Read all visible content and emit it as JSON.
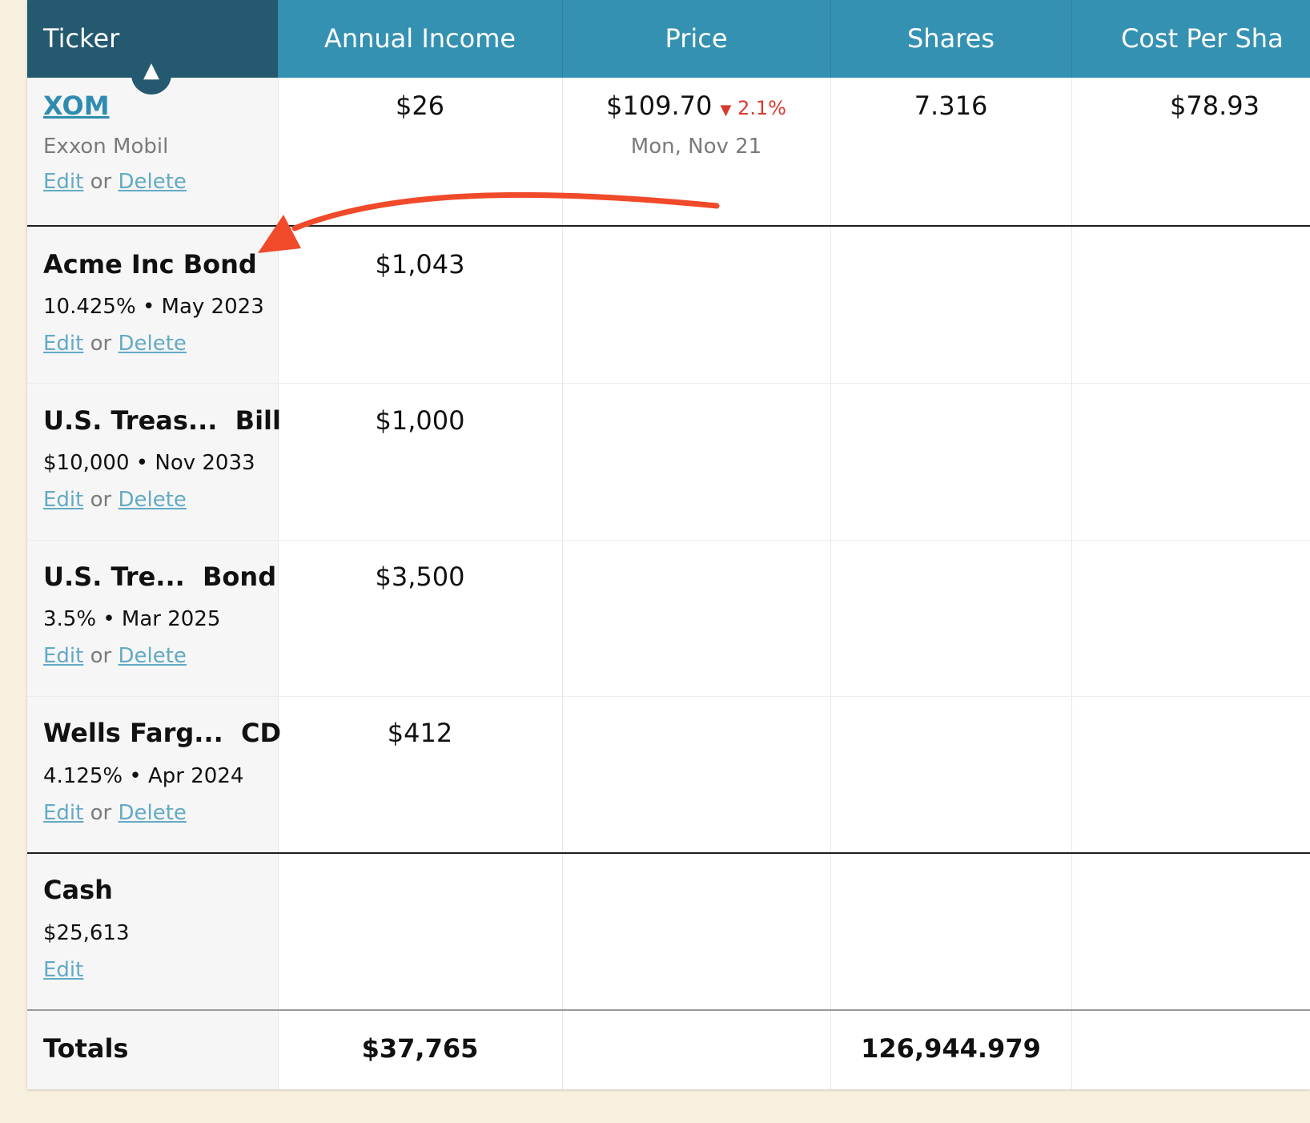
{
  "columns": {
    "ticker": "Ticker",
    "annual_income": "Annual Income",
    "price": "Price",
    "shares": "Shares",
    "cost_per_share": "Cost Per Sha"
  },
  "sort_indicator": "▲",
  "rows": [
    {
      "ticker": "XOM",
      "company": "Exxon Mobil",
      "edit": "Edit",
      "or": "or",
      "delete": "Delete",
      "annual_income": "$26",
      "price": "$109.70",
      "change_arrow": "▼",
      "change": "2.1%",
      "price_date": "Mon, Nov 21",
      "shares": "7.316",
      "cost_per_share": "$78.93"
    },
    {
      "name": "Acme Inc Bond",
      "detail": "10.425% • May 2023",
      "edit": "Edit",
      "or": "or",
      "delete": "Delete",
      "annual_income": "$1,043"
    },
    {
      "name": "U.S. Treas...  Bill",
      "detail": "$10,000 • Nov 2033",
      "edit": "Edit",
      "or": "or",
      "delete": "Delete",
      "annual_income": "$1,000"
    },
    {
      "name": "U.S. Tre...  Bond",
      "detail": "3.5% • Mar 2025",
      "edit": "Edit",
      "or": "or",
      "delete": "Delete",
      "annual_income": "$3,500"
    },
    {
      "name": "Wells Farg...  CD",
      "detail": "4.125% • Apr 2024",
      "edit": "Edit",
      "or": "or",
      "delete": "Delete",
      "annual_income": "$412"
    }
  ],
  "cash": {
    "label": "Cash",
    "amount": "$25,613",
    "edit": "Edit"
  },
  "totals": {
    "label": "Totals",
    "annual_income": "$37,765",
    "shares": "126,944.979"
  },
  "colors": {
    "header": "#3591b2",
    "header_sorted": "#25596f",
    "link": "#63aac4",
    "negative": "#d93b2b",
    "annotation_arrow": "#f04a2a",
    "page_background": "#f8f0de"
  }
}
